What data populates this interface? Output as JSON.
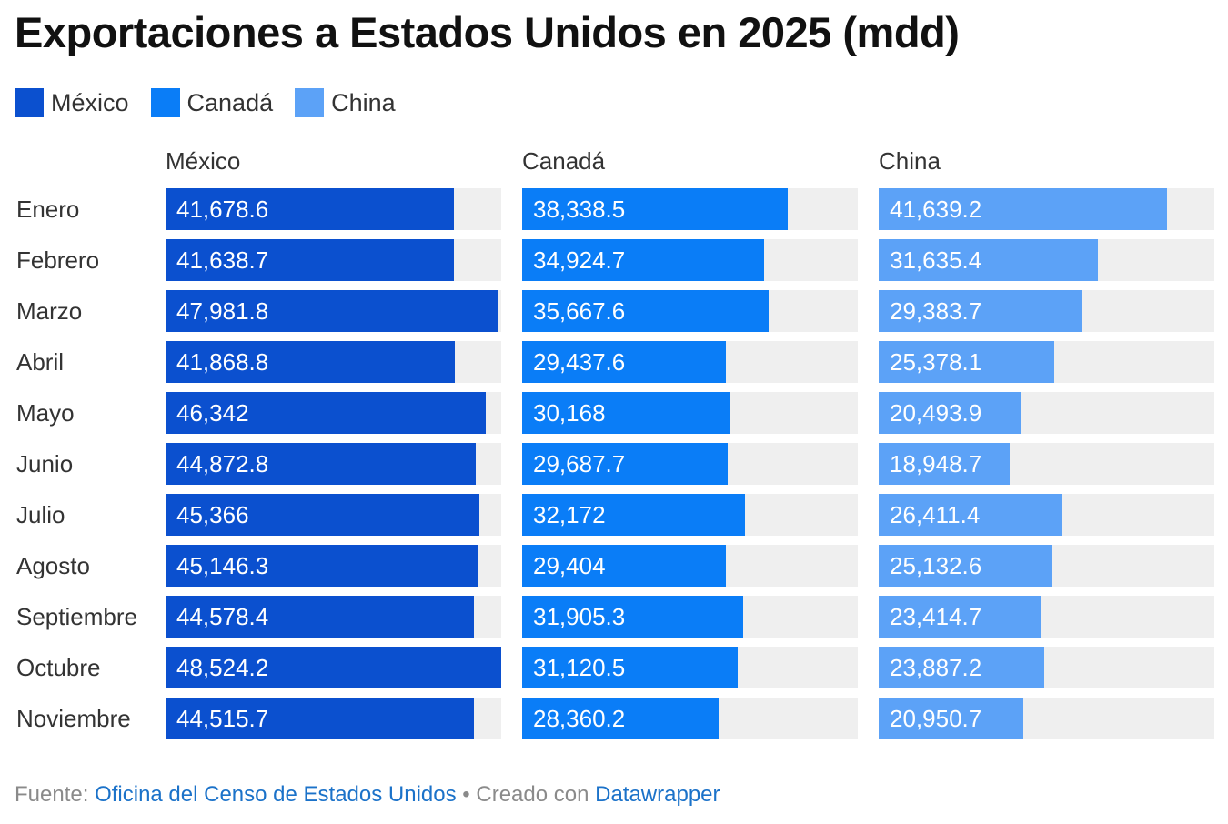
{
  "title": "Exportaciones a Estados Unidos en 2025 (mdd)",
  "legend": [
    {
      "label": "México",
      "color": "#0b50cf"
    },
    {
      "label": "Canadá",
      "color": "#0a7df7"
    },
    {
      "label": "China",
      "color": "#5ca2f7"
    }
  ],
  "chart_data": {
    "type": "bar",
    "orientation": "horizontal",
    "layout": "small-multiples",
    "title": "Exportaciones a Estados Unidos en 2025 (mdd)",
    "categories": [
      "Enero",
      "Febrero",
      "Marzo",
      "Abril",
      "Mayo",
      "Junio",
      "Julio",
      "Agosto",
      "Septiembre",
      "Octubre",
      "Noviembre"
    ],
    "xlim": [
      0,
      48524.2
    ],
    "series": [
      {
        "name": "México",
        "color": "#0b50cf",
        "values": [
          41678.6,
          41638.7,
          47981.8,
          41868.8,
          46342,
          44872.8,
          45366,
          45146.3,
          44578.4,
          48524.2,
          44515.7
        ],
        "labels": [
          "41,678.6",
          "41,638.7",
          "47,981.8",
          "41,868.8",
          "46,342",
          "44,872.8",
          "45,366",
          "45,146.3",
          "44,578.4",
          "48,524.2",
          "44,515.7"
        ]
      },
      {
        "name": "Canadá",
        "color": "#0a7df7",
        "values": [
          38338.5,
          34924.7,
          35667.6,
          29437.6,
          30168,
          29687.7,
          32172,
          29404,
          31905.3,
          31120.5,
          28360.2
        ],
        "labels": [
          "38,338.5",
          "34,924.7",
          "35,667.6",
          "29,437.6",
          "30,168",
          "29,687.7",
          "32,172",
          "29,404",
          "31,905.3",
          "31,120.5",
          "28,360.2"
        ]
      },
      {
        "name": "China",
        "color": "#5ca2f7",
        "values": [
          41639.2,
          31635.4,
          29383.7,
          25378.1,
          20493.9,
          18948.7,
          26411.4,
          25132.6,
          23414.7,
          23887.2,
          20950.7
        ],
        "labels": [
          "41,639.2",
          "31,635.4",
          "29,383.7",
          "25,378.1",
          "20,493.9",
          "18,948.7",
          "26,411.4",
          "25,132.6",
          "23,414.7",
          "23,887.2",
          "20,950.7"
        ]
      }
    ]
  },
  "footer": {
    "source_prefix": "Fuente: ",
    "source_link": "Oficina del Censo de Estados Unidos",
    "separator": " • Creado con ",
    "tool_link": "Datawrapper"
  }
}
